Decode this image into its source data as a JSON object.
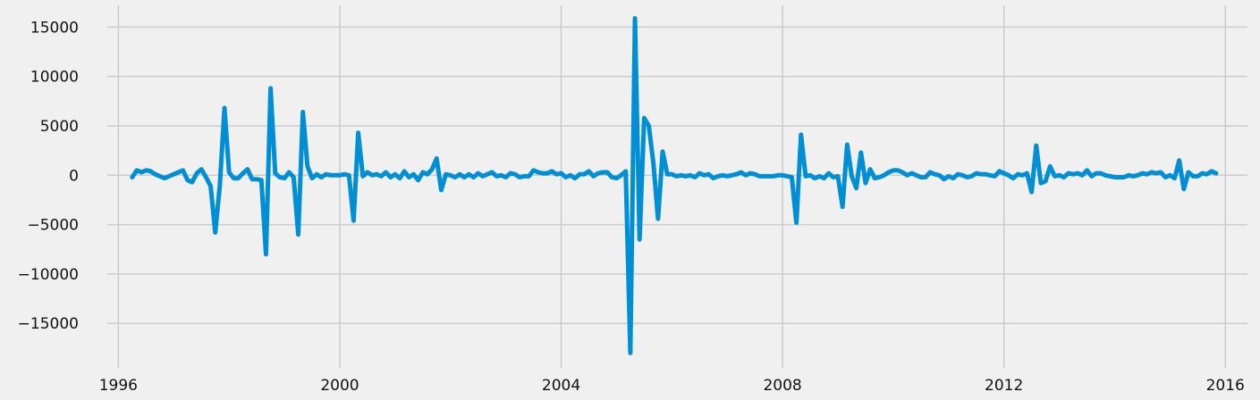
{
  "chart_data": {
    "type": "line",
    "title": "",
    "xlabel": "",
    "ylabel": "",
    "xlim": [
      1995.8,
      2016.4
    ],
    "ylim": [
      -19500,
      17200
    ],
    "grid": true,
    "legend": "none",
    "x_ticks": [
      1996,
      2000,
      2004,
      2008,
      2012,
      2016
    ],
    "x_tick_labels": [
      "1996",
      "2000",
      "2004",
      "2008",
      "2012",
      "2016"
    ],
    "y_ticks": [
      -15000,
      -10000,
      -5000,
      0,
      5000,
      10000,
      15000
    ],
    "y_tick_labels": [
      "−15000",
      "−10000",
      "−5000",
      "0",
      "5000",
      "10000",
      "15000"
    ],
    "colors": {
      "background": "#f0f0f0",
      "grid": "#cbcbcb",
      "line": "#008fd5",
      "text": "#111111"
    },
    "series": [
      {
        "color": "#008fd5",
        "x_start": 1996.25,
        "x_step": 0.0833333,
        "values": [
          -200,
          500,
          300,
          500,
          400,
          100,
          -100,
          -300,
          -100,
          100,
          300,
          500,
          -500,
          -700,
          200,
          600,
          -200,
          -1100,
          -5800,
          -1000,
          6800,
          300,
          -300,
          -300,
          200,
          600,
          -400,
          -400,
          -500,
          -8000,
          8800,
          200,
          -200,
          -300,
          300,
          -200,
          -6000,
          6400,
          900,
          -300,
          100,
          -200,
          100,
          0,
          0,
          0,
          100,
          0,
          -4600,
          4300,
          -100,
          300,
          0,
          100,
          -100,
          300,
          -200,
          100,
          -300,
          400,
          -200,
          100,
          -500,
          300,
          100,
          600,
          1700,
          -1500,
          100,
          0,
          -200,
          100,
          -200,
          100,
          -200,
          200,
          -100,
          100,
          300,
          -100,
          0,
          -200,
          200,
          100,
          -200,
          -100,
          -100,
          500,
          300,
          200,
          200,
          400,
          100,
          200,
          -200,
          0,
          -300,
          100,
          100,
          400,
          -100,
          200,
          300,
          300,
          -200,
          -300,
          0,
          400,
          -18000,
          15900,
          -6500,
          5800,
          5000,
          1200,
          -4400,
          2400,
          100,
          100,
          -100,
          0,
          -100,
          0,
          -200,
          200,
          0,
          100,
          -300,
          -100,
          0,
          -100,
          0,
          100,
          300,
          0,
          200,
          100,
          -100,
          -100,
          -100,
          -100,
          0,
          0,
          -100,
          -200,
          -4800,
          4100,
          -100,
          0,
          -300,
          -100,
          -300,
          200,
          -200,
          -100,
          -3200,
          3100,
          -100,
          -1300,
          2300,
          -800,
          600,
          -300,
          -200,
          0,
          300,
          500,
          500,
          300,
          0,
          200,
          0,
          -200,
          -200,
          300,
          100,
          0,
          -400,
          -100,
          -300,
          100,
          0,
          -200,
          -100,
          200,
          100,
          100,
          0,
          -100,
          400,
          200,
          0,
          -300,
          100,
          0,
          200,
          -1700,
          3000,
          -800,
          -600,
          900,
          -100,
          0,
          -200,
          200,
          100,
          200,
          0,
          500,
          -100,
          200,
          200,
          0,
          -100,
          -200,
          -200,
          -200,
          0,
          -100,
          0,
          200,
          100,
          300,
          200,
          300,
          -200,
          0,
          -300,
          1500,
          -1400,
          300,
          -100,
          -100,
          200,
          100,
          400,
          200
        ]
      }
    ]
  }
}
